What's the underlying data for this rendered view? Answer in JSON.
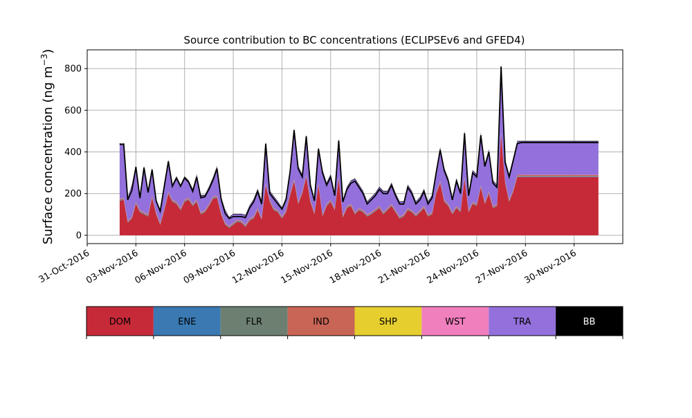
{
  "chart_data": {
    "type": "area",
    "title": "Source contribution to BC concentrations (ECLIPSEv6 and GFED4)",
    "ylabel": "Surface concentration (ng m",
    "ylabel_sup": "−3",
    "ylabel_close": ")",
    "xlabel": "",
    "ylim": [
      -40,
      890
    ],
    "xlim": [
      "2016-10-31",
      "2016-12-03"
    ],
    "grid": true,
    "yticks": [
      0,
      200,
      400,
      600,
      800
    ],
    "xticks": [
      "31-Oct-2016",
      "03-Nov-2016",
      "06-Nov-2016",
      "09-Nov-2016",
      "12-Nov-2016",
      "15-Nov-2016",
      "18-Nov-2016",
      "21-Nov-2016",
      "24-Nov-2016",
      "27-Nov-2016",
      "30-Nov-2016"
    ],
    "legend_placement": "bottom",
    "legend": [
      {
        "name": "DOM",
        "color": "#c62a38",
        "text_color": "#000000"
      },
      {
        "name": "ENE",
        "color": "#3a79b2",
        "text_color": "#000000"
      },
      {
        "name": "FLR",
        "color": "#6c7f70",
        "text_color": "#000000"
      },
      {
        "name": "IND",
        "color": "#c96556",
        "text_color": "#000000"
      },
      {
        "name": "SHP",
        "color": "#e6ce2f",
        "text_color": "#000000"
      },
      {
        "name": "WST",
        "color": "#f07fbd",
        "text_color": "#000000"
      },
      {
        "name": "TRA",
        "color": "#9370db",
        "text_color": "#000000"
      },
      {
        "name": "BB",
        "color": "#000000",
        "text_color": "#ffffff"
      }
    ],
    "x": [
      "2016-11-02",
      "2016-11-02",
      "2016-11-02",
      "2016-11-02",
      "2016-11-03",
      "2016-11-03",
      "2016-11-03",
      "2016-11-03",
      "2016-11-04",
      "2016-11-04",
      "2016-11-04",
      "2016-11-04",
      "2016-11-05",
      "2016-11-05",
      "2016-11-05",
      "2016-11-05",
      "2016-11-06",
      "2016-11-06",
      "2016-11-06",
      "2016-11-06",
      "2016-11-07",
      "2016-11-07",
      "2016-11-07",
      "2016-11-07",
      "2016-11-08",
      "2016-11-08",
      "2016-11-08",
      "2016-11-08",
      "2016-11-09",
      "2016-11-09",
      "2016-11-09",
      "2016-11-09",
      "2016-11-10",
      "2016-11-10",
      "2016-11-10",
      "2016-11-10",
      "2016-11-11",
      "2016-11-11",
      "2016-11-11",
      "2016-11-11",
      "2016-11-12",
      "2016-11-12",
      "2016-11-12",
      "2016-11-12",
      "2016-11-13",
      "2016-11-13",
      "2016-11-13",
      "2016-11-13",
      "2016-11-14",
      "2016-11-14",
      "2016-11-14",
      "2016-11-14",
      "2016-11-15",
      "2016-11-15",
      "2016-11-15",
      "2016-11-15",
      "2016-11-16",
      "2016-11-16",
      "2016-11-16",
      "2016-11-16",
      "2016-11-17",
      "2016-11-17",
      "2016-11-17",
      "2016-11-17",
      "2016-11-18",
      "2016-11-18",
      "2016-11-18",
      "2016-11-18",
      "2016-11-19",
      "2016-11-19",
      "2016-11-19",
      "2016-11-19",
      "2016-11-20",
      "2016-11-20",
      "2016-11-20",
      "2016-11-20",
      "2016-11-21",
      "2016-11-21",
      "2016-11-21",
      "2016-11-21",
      "2016-11-22",
      "2016-11-22",
      "2016-11-22",
      "2016-11-22",
      "2016-11-23",
      "2016-11-23",
      "2016-11-23",
      "2016-11-23",
      "2016-11-24",
      "2016-11-24",
      "2016-11-24",
      "2016-11-24",
      "2016-11-25",
      "2016-11-25",
      "2016-11-25",
      "2016-11-25",
      "2016-11-26",
      "2016-11-26",
      "2016-11-26",
      "2016-11-26",
      "2016-11-27",
      "2016-11-27",
      "2016-11-27",
      "2016-11-27",
      "2016-11-28",
      "2016-11-28",
      "2016-11-28",
      "2016-11-28",
      "2016-11-29",
      "2016-11-29",
      "2016-11-29",
      "2016-11-29",
      "2016-11-30",
      "2016-11-30",
      "2016-11-30",
      "2016-11-30",
      "2016-12-01",
      "2016-12-01",
      "2016-12-01"
    ],
    "x_hours": [
      0,
      6,
      12,
      18,
      0,
      6,
      12,
      18,
      0,
      6,
      12,
      18,
      0,
      6,
      12,
      18,
      0,
      6,
      12,
      18,
      0,
      6,
      12,
      18,
      0,
      6,
      12,
      18,
      0,
      6,
      12,
      18,
      0,
      6,
      12,
      18,
      0,
      6,
      12,
      18,
      0,
      6,
      12,
      18,
      0,
      6,
      12,
      18,
      0,
      6,
      12,
      18,
      0,
      6,
      12,
      18,
      0,
      6,
      12,
      18,
      0,
      6,
      12,
      18,
      0,
      6,
      12,
      18,
      0,
      6,
      12,
      18,
      0,
      6,
      12,
      18,
      0,
      6,
      12,
      18,
      0,
      6,
      12,
      18,
      0,
      6,
      12,
      18,
      0,
      6,
      12,
      18,
      0,
      6,
      12,
      18,
      0,
      6,
      12,
      18,
      0,
      6,
      12,
      18,
      0,
      6,
      12,
      18,
      0,
      6,
      12,
      18,
      0,
      6,
      12,
      18,
      0,
      6,
      12
    ],
    "series": [
      {
        "name": "DOM",
        "values": [
          165,
          170,
          60,
          80,
          150,
          110,
          100,
          90,
          180,
          100,
          50,
          120,
          200,
          160,
          150,
          120,
          160,
          170,
          140,
          160,
          100,
          110,
          140,
          175,
          180,
          100,
          50,
          35,
          50,
          65,
          60,
          40,
          70,
          80,
          120,
          75,
          240,
          160,
          120,
          110,
          80,
          110,
          190,
          260,
          150,
          200,
          280,
          160,
          100,
          240,
          90,
          140,
          160,
          120,
          270,
          85,
          130,
          140,
          100,
          120,
          110,
          90,
          100,
          115,
          130,
          100,
          120,
          140,
          110,
          80,
          90,
          120,
          110,
          90,
          110,
          130,
          90,
          100,
          200,
          250,
          160,
          140,
          100,
          130,
          110,
          270,
          110,
          150,
          140,
          230,
          150,
          200,
          130,
          140,
          480,
          250,
          160,
          210,
          280,
          280,
          280,
          280,
          280,
          280,
          280,
          280,
          280,
          280,
          280,
          280,
          280,
          280,
          280,
          280,
          280,
          280,
          280,
          280,
          280
        ]
      },
      {
        "name": "ENE",
        "values": [
          2,
          2,
          2,
          2,
          2,
          2,
          2,
          2,
          2,
          2,
          2,
          2,
          2,
          2,
          2,
          2,
          2,
          2,
          2,
          2,
          2,
          2,
          2,
          2,
          2,
          2,
          2,
          2,
          2,
          2,
          2,
          2,
          2,
          2,
          2,
          2,
          2,
          2,
          2,
          2,
          2,
          2,
          2,
          2,
          2,
          2,
          2,
          2,
          2,
          2,
          2,
          2,
          2,
          2,
          2,
          2,
          2,
          2,
          2,
          2,
          2,
          2,
          2,
          2,
          2,
          2,
          2,
          2,
          2,
          2,
          2,
          2,
          2,
          2,
          2,
          2,
          2,
          2,
          2,
          2,
          2,
          2,
          2,
          2,
          2,
          2,
          2,
          2,
          2,
          2,
          2,
          2,
          2,
          2,
          2,
          2,
          2,
          2,
          2,
          2,
          2,
          2,
          2,
          2,
          2,
          2,
          2,
          2,
          2,
          2,
          2,
          2,
          2,
          2,
          2,
          2,
          2,
          2,
          2
        ]
      },
      {
        "name": "FLR",
        "values": [
          3,
          3,
          3,
          3,
          3,
          3,
          3,
          3,
          3,
          3,
          3,
          3,
          3,
          3,
          3,
          3,
          3,
          3,
          3,
          3,
          3,
          3,
          3,
          3,
          3,
          3,
          3,
          3,
          3,
          3,
          3,
          3,
          3,
          3,
          3,
          3,
          3,
          3,
          3,
          3,
          3,
          3,
          3,
          3,
          3,
          3,
          3,
          3,
          3,
          3,
          3,
          3,
          3,
          3,
          3,
          3,
          3,
          3,
          3,
          3,
          3,
          3,
          3,
          3,
          3,
          3,
          3,
          3,
          3,
          3,
          3,
          3,
          3,
          3,
          3,
          3,
          3,
          3,
          3,
          3,
          3,
          3,
          3,
          3,
          3,
          3,
          3,
          3,
          3,
          3,
          3,
          3,
          3,
          3,
          3,
          3,
          3,
          3,
          3,
          3,
          3,
          3,
          3,
          3,
          3,
          3,
          3,
          3,
          3,
          3,
          3,
          3,
          3,
          3,
          3,
          3,
          3,
          3,
          3
        ]
      },
      {
        "name": "IND",
        "values": [
          4,
          4,
          4,
          4,
          4,
          4,
          4,
          4,
          4,
          4,
          4,
          4,
          4,
          4,
          4,
          4,
          4,
          4,
          4,
          4,
          4,
          4,
          4,
          4,
          4,
          4,
          4,
          4,
          4,
          4,
          4,
          4,
          4,
          4,
          4,
          4,
          4,
          4,
          4,
          4,
          4,
          4,
          4,
          4,
          4,
          4,
          4,
          4,
          4,
          4,
          4,
          4,
          4,
          4,
          4,
          4,
          4,
          4,
          4,
          4,
          4,
          4,
          4,
          4,
          4,
          4,
          4,
          4,
          4,
          4,
          4,
          4,
          4,
          4,
          4,
          4,
          4,
          4,
          4,
          4,
          4,
          4,
          4,
          4,
          4,
          4,
          4,
          4,
          4,
          4,
          4,
          4,
          4,
          4,
          4,
          4,
          4,
          4,
          4,
          4,
          4,
          4,
          4,
          4,
          4,
          4,
          4,
          4,
          4,
          4,
          4,
          4,
          4,
          4,
          4,
          4,
          4,
          4,
          4
        ]
      },
      {
        "name": "SHP",
        "values": [
          0,
          0,
          0,
          0,
          0,
          0,
          0,
          0,
          0,
          0,
          0,
          0,
          0,
          0,
          0,
          0,
          0,
          0,
          0,
          0,
          0,
          0,
          0,
          0,
          0,
          0,
          0,
          0,
          0,
          0,
          0,
          0,
          0,
          0,
          0,
          0,
          0,
          0,
          0,
          0,
          0,
          0,
          0,
          0,
          0,
          0,
          0,
          0,
          0,
          0,
          0,
          0,
          0,
          0,
          0,
          0,
          0,
          0,
          0,
          0,
          0,
          0,
          0,
          0,
          0,
          0,
          0,
          0,
          0,
          0,
          0,
          0,
          0,
          0,
          0,
          0,
          0,
          0,
          0,
          0,
          0,
          0,
          0,
          0,
          0,
          0,
          0,
          0,
          0,
          0,
          0,
          0,
          0,
          0,
          0,
          0,
          0,
          0,
          0,
          0,
          0,
          0,
          0,
          0,
          0,
          0,
          0,
          0,
          0,
          0,
          0,
          0,
          0,
          0,
          0,
          0,
          0,
          0,
          0
        ]
      },
      {
        "name": "WST",
        "values": [
          1,
          1,
          1,
          1,
          1,
          1,
          1,
          1,
          1,
          1,
          1,
          1,
          1,
          1,
          1,
          1,
          1,
          1,
          1,
          1,
          1,
          1,
          1,
          1,
          1,
          1,
          1,
          1,
          1,
          1,
          1,
          1,
          1,
          1,
          1,
          1,
          1,
          1,
          1,
          1,
          1,
          1,
          1,
          1,
          1,
          1,
          1,
          1,
          1,
          1,
          1,
          1,
          1,
          1,
          1,
          1,
          1,
          1,
          1,
          1,
          1,
          1,
          1,
          1,
          1,
          1,
          1,
          1,
          1,
          1,
          1,
          1,
          1,
          1,
          1,
          1,
          1,
          1,
          1,
          1,
          1,
          1,
          1,
          1,
          1,
          1,
          1,
          1,
          1,
          1,
          1,
          1,
          1,
          1,
          1,
          1,
          1,
          1,
          1,
          1,
          1,
          1,
          1,
          1,
          1,
          1,
          1,
          1,
          1,
          1,
          1,
          1,
          1,
          1,
          1,
          1,
          1,
          1,
          1
        ]
      },
      {
        "name": "TRA",
        "values": [
          265,
          250,
          110,
          150,
          170,
          60,
          220,
          110,
          130,
          60,
          60,
          120,
          150,
          70,
          120,
          110,
          110,
          80,
          70,
          120,
          80,
          70,
          80,
          90,
          140,
          70,
          60,
          40,
          40,
          25,
          30,
          45,
          60,
          80,
          90,
          80,
          190,
          40,
          55,
          40,
          40,
          60,
          110,
          240,
          170,
          80,
          190,
          80,
          60,
          170,
          210,
          100,
          120,
          70,
          180,
          70,
          90,
          110,
          160,
          110,
          90,
          60,
          70,
          75,
          90,
          100,
          80,
          100,
          80,
          70,
          60,
          110,
          90,
          60,
          60,
          80,
          60,
          80,
          100,
          160,
          150,
          120,
          70,
          130,
          90,
          220,
          80,
          150,
          140,
          250,
          180,
          200,
          120,
          90,
          330,
          100,
          120,
          150,
          160,
          160,
          160,
          160,
          160,
          160,
          160,
          160,
          160,
          160,
          160,
          160,
          160,
          160,
          160,
          160,
          160,
          160,
          160,
          160,
          160
        ]
      },
      {
        "name": "BB",
        "values": [
          3,
          3,
          3,
          3,
          3,
          3,
          3,
          3,
          3,
          3,
          3,
          3,
          3,
          3,
          3,
          3,
          3,
          3,
          3,
          3,
          3,
          3,
          3,
          3,
          3,
          3,
          3,
          3,
          3,
          3,
          3,
          3,
          3,
          3,
          3,
          3,
          3,
          3,
          3,
          3,
          3,
          3,
          3,
          3,
          3,
          3,
          3,
          3,
          3,
          3,
          3,
          3,
          3,
          3,
          3,
          3,
          3,
          3,
          3,
          3,
          3,
          3,
          3,
          3,
          3,
          3,
          3,
          3,
          3,
          3,
          3,
          3,
          3,
          3,
          3,
          3,
          3,
          3,
          3,
          3,
          3,
          3,
          3,
          3,
          3,
          3,
          3,
          3,
          3,
          3,
          3,
          3,
          3,
          3,
          3,
          3,
          3,
          3,
          3,
          3,
          3,
          3,
          3,
          3,
          3,
          3,
          3,
          3,
          3,
          3,
          3,
          3,
          3,
          3,
          3,
          3,
          3,
          3,
          3
        ]
      }
    ],
    "total": [
      436,
      438,
      170,
      215,
      328,
      178,
      325,
      205,
      315,
      165,
      115,
      235,
      355,
      235,
      275,
      235,
      275,
      255,
      210,
      280,
      180,
      185,
      220,
      265,
      320,
      175,
      105,
      80,
      90,
      90,
      90,
      85,
      130,
      160,
      210,
      150,
      440,
      200,
      175,
      150,
      125,
      170,
      305,
      505,
      320,
      280,
      475,
      240,
      165,
      415,
      300,
      240,
      280,
      190,
      455,
      160,
      220,
      250,
      260,
      230,
      200,
      150,
      170,
      190,
      220,
      200,
      200,
      240,
      190,
      150,
      150,
      230,
      200,
      150,
      170,
      210,
      150,
      180,
      300,
      410,
      310,
      260,
      170,
      260,
      200,
      490,
      190,
      300,
      280,
      480,
      330,
      400,
      250,
      230,
      810,
      350,
      280,
      360,
      440,
      445,
      445,
      445,
      445,
      445,
      445,
      445,
      445,
      445,
      445,
      445,
      445,
      445,
      445,
      445,
      445,
      445,
      445,
      445,
      445
    ]
  }
}
